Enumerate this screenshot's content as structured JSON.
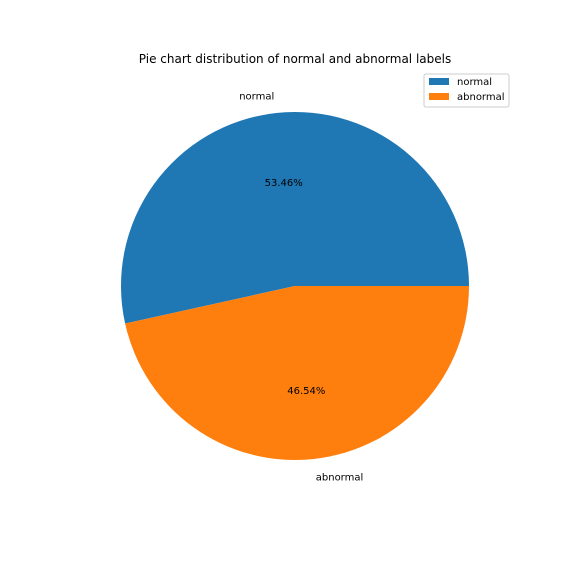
{
  "chart_data": {
    "type": "pie",
    "title": "Pie chart distribution of normal and abnormal labels",
    "slices": [
      {
        "label": "normal",
        "value": 53.46,
        "pct_label": "53.46%",
        "color": "#1f77b4"
      },
      {
        "label": "abnormal",
        "value": 46.54,
        "pct_label": "46.54%",
        "color": "#ff7f0e"
      }
    ],
    "start_angle_deg": 0,
    "direction": "counterclockwise",
    "legend": {
      "placement": "top-right",
      "entries": [
        "normal",
        "abnormal"
      ]
    }
  }
}
